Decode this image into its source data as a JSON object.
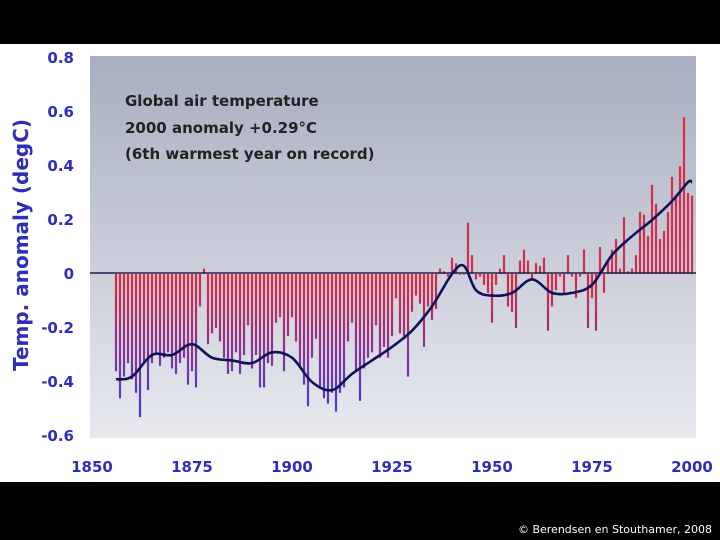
{
  "chart_data": {
    "type": "bar",
    "title_lines": [
      "Global air temperature",
      "2000 anomaly +0.29°C",
      "(6th warmest year on record)"
    ],
    "ylabel": "Temp. anomaly (degC)",
    "xlabel": "",
    "xlim": [
      1856,
      2000
    ],
    "ylim": [
      -0.6,
      0.8
    ],
    "x_ticks": [
      "1850",
      "1875",
      "1900",
      "1925",
      "1950",
      "1975",
      "2000"
    ],
    "y_ticks": [
      "0.8",
      "0.6",
      "0.4",
      "0.2",
      "0",
      "-0.2",
      "-0.4",
      "-0.6"
    ],
    "grid": false,
    "colors": {
      "bar_top": "#e0283c",
      "bar_bottom": "#3a3ae0",
      "smooth_line": "#10105a",
      "axis_text": "#2d2dbe"
    },
    "series": [
      {
        "kind": "annual",
        "x": [
          1856,
          1857,
          1858,
          1859,
          1860,
          1861,
          1862,
          1863,
          1864,
          1865,
          1866,
          1867,
          1868,
          1869,
          1870,
          1871,
          1872,
          1873,
          1874,
          1875,
          1876,
          1877,
          1878,
          1879,
          1880,
          1881,
          1882,
          1883,
          1884,
          1885,
          1886,
          1887,
          1888,
          1889,
          1890,
          1891,
          1892,
          1893,
          1894,
          1895,
          1896,
          1897,
          1898,
          1899,
          1900,
          1901,
          1902,
          1903,
          1904,
          1905,
          1906,
          1907,
          1908,
          1909,
          1910,
          1911,
          1912,
          1913,
          1914,
          1915,
          1916,
          1917,
          1918,
          1919,
          1920,
          1921,
          1922,
          1923,
          1924,
          1925,
          1926,
          1927,
          1928,
          1929,
          1930,
          1931,
          1932,
          1933,
          1934,
          1935,
          1936,
          1937,
          1938,
          1939,
          1940,
          1941,
          1942,
          1943,
          1944,
          1945,
          1946,
          1947,
          1948,
          1949,
          1950,
          1951,
          1952,
          1953,
          1954,
          1955,
          1956,
          1957,
          1958,
          1959,
          1960,
          1961,
          1962,
          1963,
          1964,
          1965,
          1966,
          1967,
          1968,
          1969,
          1970,
          1971,
          1972,
          1973,
          1974,
          1975,
          1976,
          1977,
          1978,
          1979,
          1980,
          1981,
          1982,
          1983,
          1984,
          1985,
          1986,
          1987,
          1988,
          1989,
          1990,
          1991,
          1992,
          1993,
          1994,
          1995,
          1996,
          1997,
          1998,
          1999,
          2000
        ],
        "values": [
          -0.36,
          -0.46,
          -0.38,
          -0.33,
          -0.39,
          -0.44,
          -0.53,
          -0.33,
          -0.43,
          -0.33,
          -0.3,
          -0.34,
          -0.31,
          -0.29,
          -0.35,
          -0.37,
          -0.33,
          -0.31,
          -0.41,
          -0.36,
          -0.42,
          -0.12,
          0.02,
          -0.26,
          -0.22,
          -0.2,
          -0.25,
          -0.31,
          -0.37,
          -0.36,
          -0.29,
          -0.37,
          -0.3,
          -0.19,
          -0.35,
          -0.3,
          -0.42,
          -0.42,
          -0.33,
          -0.34,
          -0.18,
          -0.16,
          -0.36,
          -0.23,
          -0.16,
          -0.25,
          -0.34,
          -0.41,
          -0.49,
          -0.31,
          -0.24,
          -0.42,
          -0.46,
          -0.48,
          -0.44,
          -0.51,
          -0.44,
          -0.42,
          -0.25,
          -0.18,
          -0.36,
          -0.47,
          -0.35,
          -0.31,
          -0.29,
          -0.19,
          -0.31,
          -0.27,
          -0.31,
          -0.23,
          -0.09,
          -0.22,
          -0.23,
          -0.38,
          -0.14,
          -0.08,
          -0.11,
          -0.27,
          -0.12,
          -0.17,
          -0.13,
          0.02,
          0.01,
          -0.01,
          0.06,
          0.04,
          0.0,
          0.0,
          0.19,
          0.07,
          -0.02,
          -0.01,
          -0.04,
          -0.07,
          -0.18,
          -0.04,
          0.02,
          0.07,
          -0.12,
          -0.14,
          -0.2,
          0.05,
          0.09,
          0.05,
          -0.02,
          0.04,
          0.03,
          0.06,
          -0.21,
          -0.12,
          -0.06,
          -0.01,
          -0.07,
          0.07,
          -0.01,
          -0.09,
          -0.01,
          0.09,
          -0.2,
          -0.09,
          -0.21,
          0.1,
          -0.07,
          0.05,
          0.09,
          0.13,
          0.02,
          0.21,
          0.01,
          0.02,
          0.07,
          0.23,
          0.22,
          0.14,
          0.33,
          0.26,
          0.13,
          0.16,
          0.23,
          0.36,
          0.29,
          0.4,
          0.58,
          0.3,
          0.29
        ]
      },
      {
        "kind": "smoothed",
        "x": [
          1856,
          1860,
          1865,
          1870,
          1875,
          1880,
          1885,
          1890,
          1895,
          1900,
          1905,
          1910,
          1915,
          1920,
          1925,
          1930,
          1935,
          1940,
          1943,
          1946,
          1950,
          1955,
          1960,
          1965,
          1970,
          1975,
          1980,
          1985,
          1990,
          1995,
          1999,
          2000
        ],
        "values": [
          -0.39,
          -0.38,
          -0.3,
          -0.3,
          -0.26,
          -0.31,
          -0.32,
          -0.33,
          -0.29,
          -0.31,
          -0.4,
          -0.43,
          -0.37,
          -0.32,
          -0.27,
          -0.21,
          -0.12,
          0.0,
          0.03,
          -0.06,
          -0.08,
          -0.07,
          -0.02,
          -0.07,
          -0.07,
          -0.04,
          0.07,
          0.14,
          0.2,
          0.27,
          0.34,
          0.34
        ]
      }
    ]
  },
  "footer": {
    "credit": "© Berendsen en Stouthamer, 2008"
  }
}
